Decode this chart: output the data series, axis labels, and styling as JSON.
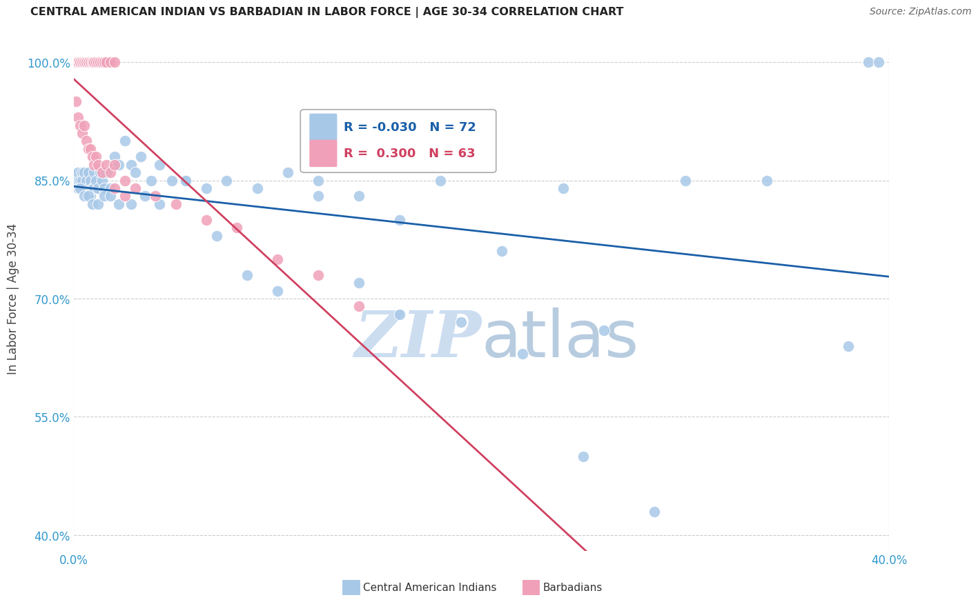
{
  "title": "CENTRAL AMERICAN INDIAN VS BARBADIAN IN LABOR FORCE | AGE 30-34 CORRELATION CHART",
  "source": "Source: ZipAtlas.com",
  "ylabel": "In Labor Force | Age 30-34",
  "xlim": [
    0.0,
    0.4
  ],
  "ylim": [
    0.38,
    1.02
  ],
  "xticks": [
    0.0,
    0.4
  ],
  "xticklabels": [
    "0.0%",
    "40.0%"
  ],
  "yticks": [
    0.4,
    0.55,
    0.7,
    0.85,
    1.0
  ],
  "yticklabels": [
    "40.0%",
    "55.0%",
    "70.0%",
    "85.0%",
    "100.0%"
  ],
  "blue_R": -0.03,
  "blue_N": 72,
  "pink_R": 0.3,
  "pink_N": 63,
  "blue_color": "#a8c8e8",
  "pink_color": "#f0a0b8",
  "blue_line_color": "#1a5fa8",
  "pink_line_color": "#d04060",
  "blue_scatter_x": [
    0.001,
    0.002,
    0.002,
    0.003,
    0.003,
    0.004,
    0.004,
    0.005,
    0.005,
    0.006,
    0.007,
    0.007,
    0.008,
    0.008,
    0.009,
    0.01,
    0.01,
    0.011,
    0.012,
    0.013,
    0.014,
    0.015,
    0.016,
    0.018,
    0.02,
    0.022,
    0.025,
    0.028,
    0.03,
    0.033,
    0.038,
    0.042,
    0.048,
    0.055,
    0.065,
    0.075,
    0.09,
    0.105,
    0.12,
    0.14,
    0.16,
    0.18,
    0.21,
    0.24,
    0.003,
    0.005,
    0.007,
    0.009,
    0.012,
    0.015,
    0.018,
    0.022,
    0.028,
    0.035,
    0.042,
    0.055,
    0.07,
    0.085,
    0.1,
    0.12,
    0.14,
    0.16,
    0.19,
    0.22,
    0.26,
    0.3,
    0.34,
    0.38,
    0.39,
    0.395,
    0.25,
    0.285
  ],
  "blue_scatter_y": [
    0.85,
    0.86,
    0.84,
    0.85,
    0.84,
    0.86,
    0.85,
    0.84,
    0.86,
    0.85,
    0.86,
    0.84,
    0.85,
    0.83,
    0.84,
    0.86,
    0.84,
    0.85,
    0.84,
    0.86,
    0.85,
    0.84,
    0.86,
    0.84,
    0.88,
    0.87,
    0.9,
    0.87,
    0.86,
    0.88,
    0.85,
    0.87,
    0.85,
    0.85,
    0.84,
    0.85,
    0.84,
    0.86,
    0.85,
    0.83,
    0.8,
    0.85,
    0.76,
    0.84,
    0.84,
    0.83,
    0.83,
    0.82,
    0.82,
    0.83,
    0.83,
    0.82,
    0.82,
    0.83,
    0.82,
    0.85,
    0.78,
    0.73,
    0.71,
    0.83,
    0.72,
    0.68,
    0.67,
    0.63,
    0.66,
    0.85,
    0.85,
    0.64,
    1.0,
    1.0,
    0.5,
    0.43
  ],
  "pink_scatter_x": [
    0.001,
    0.001,
    0.001,
    0.002,
    0.002,
    0.002,
    0.002,
    0.003,
    0.003,
    0.003,
    0.003,
    0.004,
    0.004,
    0.004,
    0.005,
    0.005,
    0.005,
    0.006,
    0.006,
    0.006,
    0.007,
    0.007,
    0.008,
    0.008,
    0.009,
    0.009,
    0.01,
    0.01,
    0.011,
    0.012,
    0.013,
    0.014,
    0.015,
    0.016,
    0.018,
    0.02,
    0.001,
    0.002,
    0.003,
    0.004,
    0.005,
    0.006,
    0.007,
    0.008,
    0.009,
    0.01,
    0.011,
    0.012,
    0.014,
    0.016,
    0.018,
    0.02,
    0.025,
    0.03,
    0.04,
    0.05,
    0.065,
    0.08,
    0.1,
    0.12,
    0.14,
    0.02,
    0.025
  ],
  "pink_scatter_y": [
    1.0,
    1.0,
    1.0,
    1.0,
    1.0,
    1.0,
    1.0,
    1.0,
    1.0,
    1.0,
    1.0,
    1.0,
    1.0,
    1.0,
    1.0,
    1.0,
    1.0,
    1.0,
    1.0,
    1.0,
    1.0,
    1.0,
    1.0,
    1.0,
    1.0,
    1.0,
    1.0,
    1.0,
    1.0,
    1.0,
    1.0,
    1.0,
    1.0,
    1.0,
    1.0,
    1.0,
    0.95,
    0.93,
    0.92,
    0.91,
    0.92,
    0.9,
    0.89,
    0.89,
    0.88,
    0.87,
    0.88,
    0.87,
    0.86,
    0.87,
    0.86,
    0.87,
    0.85,
    0.84,
    0.83,
    0.82,
    0.8,
    0.79,
    0.75,
    0.73,
    0.69,
    0.84,
    0.83
  ],
  "background_color": "#ffffff",
  "watermark_color": "#ccddf0"
}
